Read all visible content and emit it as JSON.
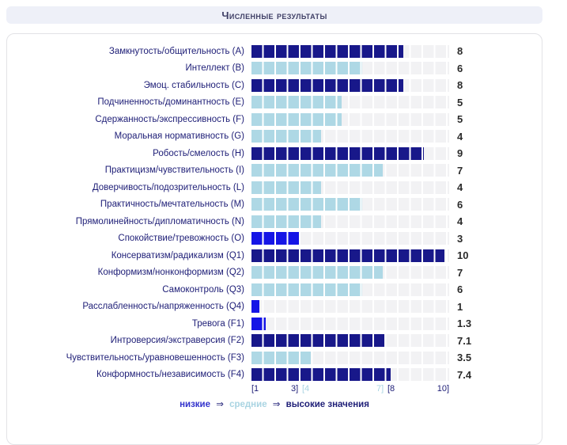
{
  "header": {
    "title": "Численные результаты"
  },
  "chart_data": {
    "type": "bar",
    "orientation": "horizontal",
    "title": "Численные результаты",
    "xlim": [
      1,
      10
    ],
    "grid": false,
    "axis_labels": [
      "[1",
      "3]",
      "[4",
      "7]",
      "[8",
      "10]"
    ],
    "ranges": [
      {
        "name": "низкие",
        "from": 1,
        "to": 3,
        "color": "#1515e6"
      },
      {
        "name": "средние",
        "from": 4,
        "to": 7,
        "color": "#aed8e5"
      },
      {
        "name": "высокие",
        "from": 8,
        "to": 10,
        "color": "#18188a"
      }
    ],
    "factors": [
      {
        "label": "Замкнутость/общительность (A)",
        "score": 8,
        "display": "8",
        "level": "high"
      },
      {
        "label": "Интеллект (B)",
        "score": 6,
        "display": "6",
        "level": "mid"
      },
      {
        "label": "Эмоц. стабильность (C)",
        "score": 8,
        "display": "8",
        "level": "high"
      },
      {
        "label": "Подчиненность/доминантность (E)",
        "score": 5,
        "display": "5",
        "level": "mid"
      },
      {
        "label": "Сдержанность/экспрессивность (F)",
        "score": 5,
        "display": "5",
        "level": "mid"
      },
      {
        "label": "Моральная нормативность (G)",
        "score": 4,
        "display": "4",
        "level": "mid"
      },
      {
        "label": "Робость/смелость (H)",
        "score": 9,
        "display": "9",
        "level": "high"
      },
      {
        "label": "Практицизм/чувствительность (I)",
        "score": 7,
        "display": "7",
        "level": "mid"
      },
      {
        "label": "Доверчивость/подозрительность (L)",
        "score": 4,
        "display": "4",
        "level": "mid"
      },
      {
        "label": "Практичность/мечтательность (M)",
        "score": 6,
        "display": "6",
        "level": "mid"
      },
      {
        "label": "Прямолинейность/дипломатичность (N)",
        "score": 4,
        "display": "4",
        "level": "mid"
      },
      {
        "label": "Спокойствие/тревожность (O)",
        "score": 3,
        "display": "3",
        "level": "low"
      },
      {
        "label": "Консерватизм/радикализм (Q1)",
        "score": 10,
        "display": "10",
        "level": "high"
      },
      {
        "label": "Конформизм/нонконформизм (Q2)",
        "score": 7,
        "display": "7",
        "level": "mid"
      },
      {
        "label": "Самоконтроль (Q3)",
        "score": 6,
        "display": "6",
        "level": "mid"
      },
      {
        "label": "Расслабленность/напряженность (Q4)",
        "score": 1,
        "display": "1",
        "level": "low"
      },
      {
        "label": "Тревога (F1)",
        "score": 1.3,
        "display": "1.3",
        "level": "low"
      },
      {
        "label": "Интроверсия/экстраверсия (F2)",
        "score": 7.1,
        "display": "7.1",
        "level": "high"
      },
      {
        "label": "Чувствительность/уравновешенность (F3)",
        "score": 3.5,
        "display": "3.5",
        "level": "mid"
      },
      {
        "label": "Конформность/независимость (F4)",
        "score": 7.4,
        "display": "7.4",
        "level": "high"
      }
    ],
    "legend": {
      "low": "низкие",
      "mid": "средние",
      "high": "высокие значения",
      "arrow": "⇒"
    },
    "colors": {
      "low": "#1515e6",
      "mid": "#aed8e5",
      "high": "#18188a",
      "track": "#f2f2f4",
      "label_text": "#202078",
      "value_text": "#2b2b2b"
    }
  }
}
